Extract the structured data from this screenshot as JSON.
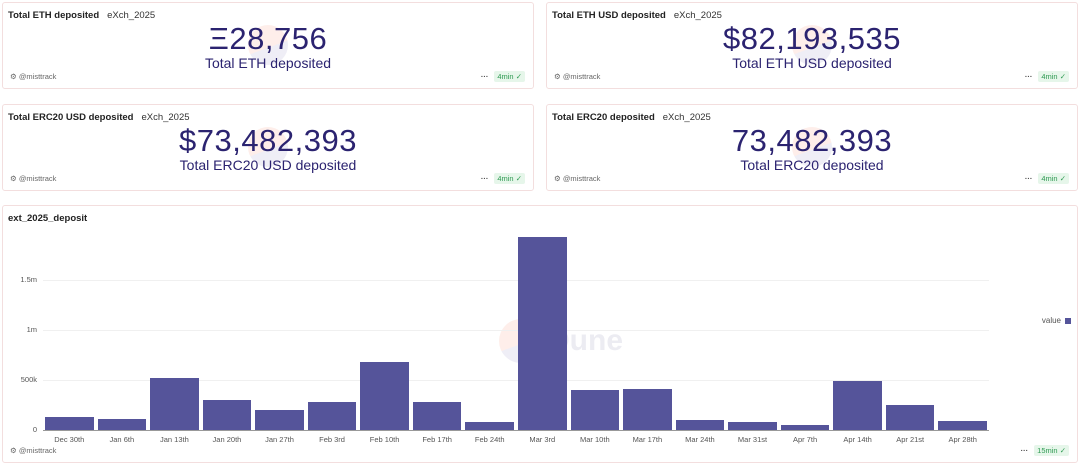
{
  "counters": [
    {
      "title": "Total ETH deposited",
      "tag": "eXch_2025",
      "value": "Ξ28,756",
      "label": "Total ETH deposited",
      "author": "@misttrack",
      "refresh": "4min"
    },
    {
      "title": "Total ETH USD deposited",
      "tag": "eXch_2025",
      "value": "$82,193,535",
      "label": "Total ETH USD deposited",
      "author": "@misttrack",
      "refresh": "4min"
    },
    {
      "title": "Total ERC20 USD deposited",
      "tag": "eXch_2025",
      "value": "$73,482,393",
      "label": "Total ERC20 USD deposited",
      "author": "@misttrack",
      "refresh": "4min"
    },
    {
      "title": "Total ERC20 deposited",
      "tag": "eXch_2025",
      "value": "73,482,393",
      "label": "Total ERC20 deposited",
      "author": "@misttrack",
      "refresh": "4min"
    }
  ],
  "chart_panel": {
    "author": "@misttrack",
    "refresh": "15min",
    "watermark": "Dune"
  },
  "chart_data": {
    "type": "bar",
    "title": "ext_2025_deposit",
    "categories": [
      "Dec 30th",
      "Jan 6th",
      "Jan 13th",
      "Jan 20th",
      "Jan 27th",
      "Feb 3rd",
      "Feb 10th",
      "Feb 17th",
      "Feb 24th",
      "Mar 3rd",
      "Mar 10th",
      "Mar 17th",
      "Mar 24th",
      "Mar 31st",
      "Apr 7th",
      "Apr 14th",
      "Apr 21st",
      "Apr 28th"
    ],
    "series": [
      {
        "name": "value",
        "color": "#55549a",
        "values": [
          130000,
          110000,
          520000,
          300000,
          205000,
          285000,
          680000,
          285000,
          80000,
          1930000,
          400000,
          415000,
          100000,
          80000,
          50000,
          490000,
          250000,
          90000
        ]
      }
    ],
    "yticks": [
      {
        "v": 0,
        "label": "0"
      },
      {
        "v": 500000,
        "label": "500k"
      },
      {
        "v": 1000000,
        "label": "1m"
      },
      {
        "v": 1500000,
        "label": "1.5m"
      }
    ],
    "ylim": [
      0,
      2000000
    ],
    "legend": "right",
    "grid": true
  }
}
